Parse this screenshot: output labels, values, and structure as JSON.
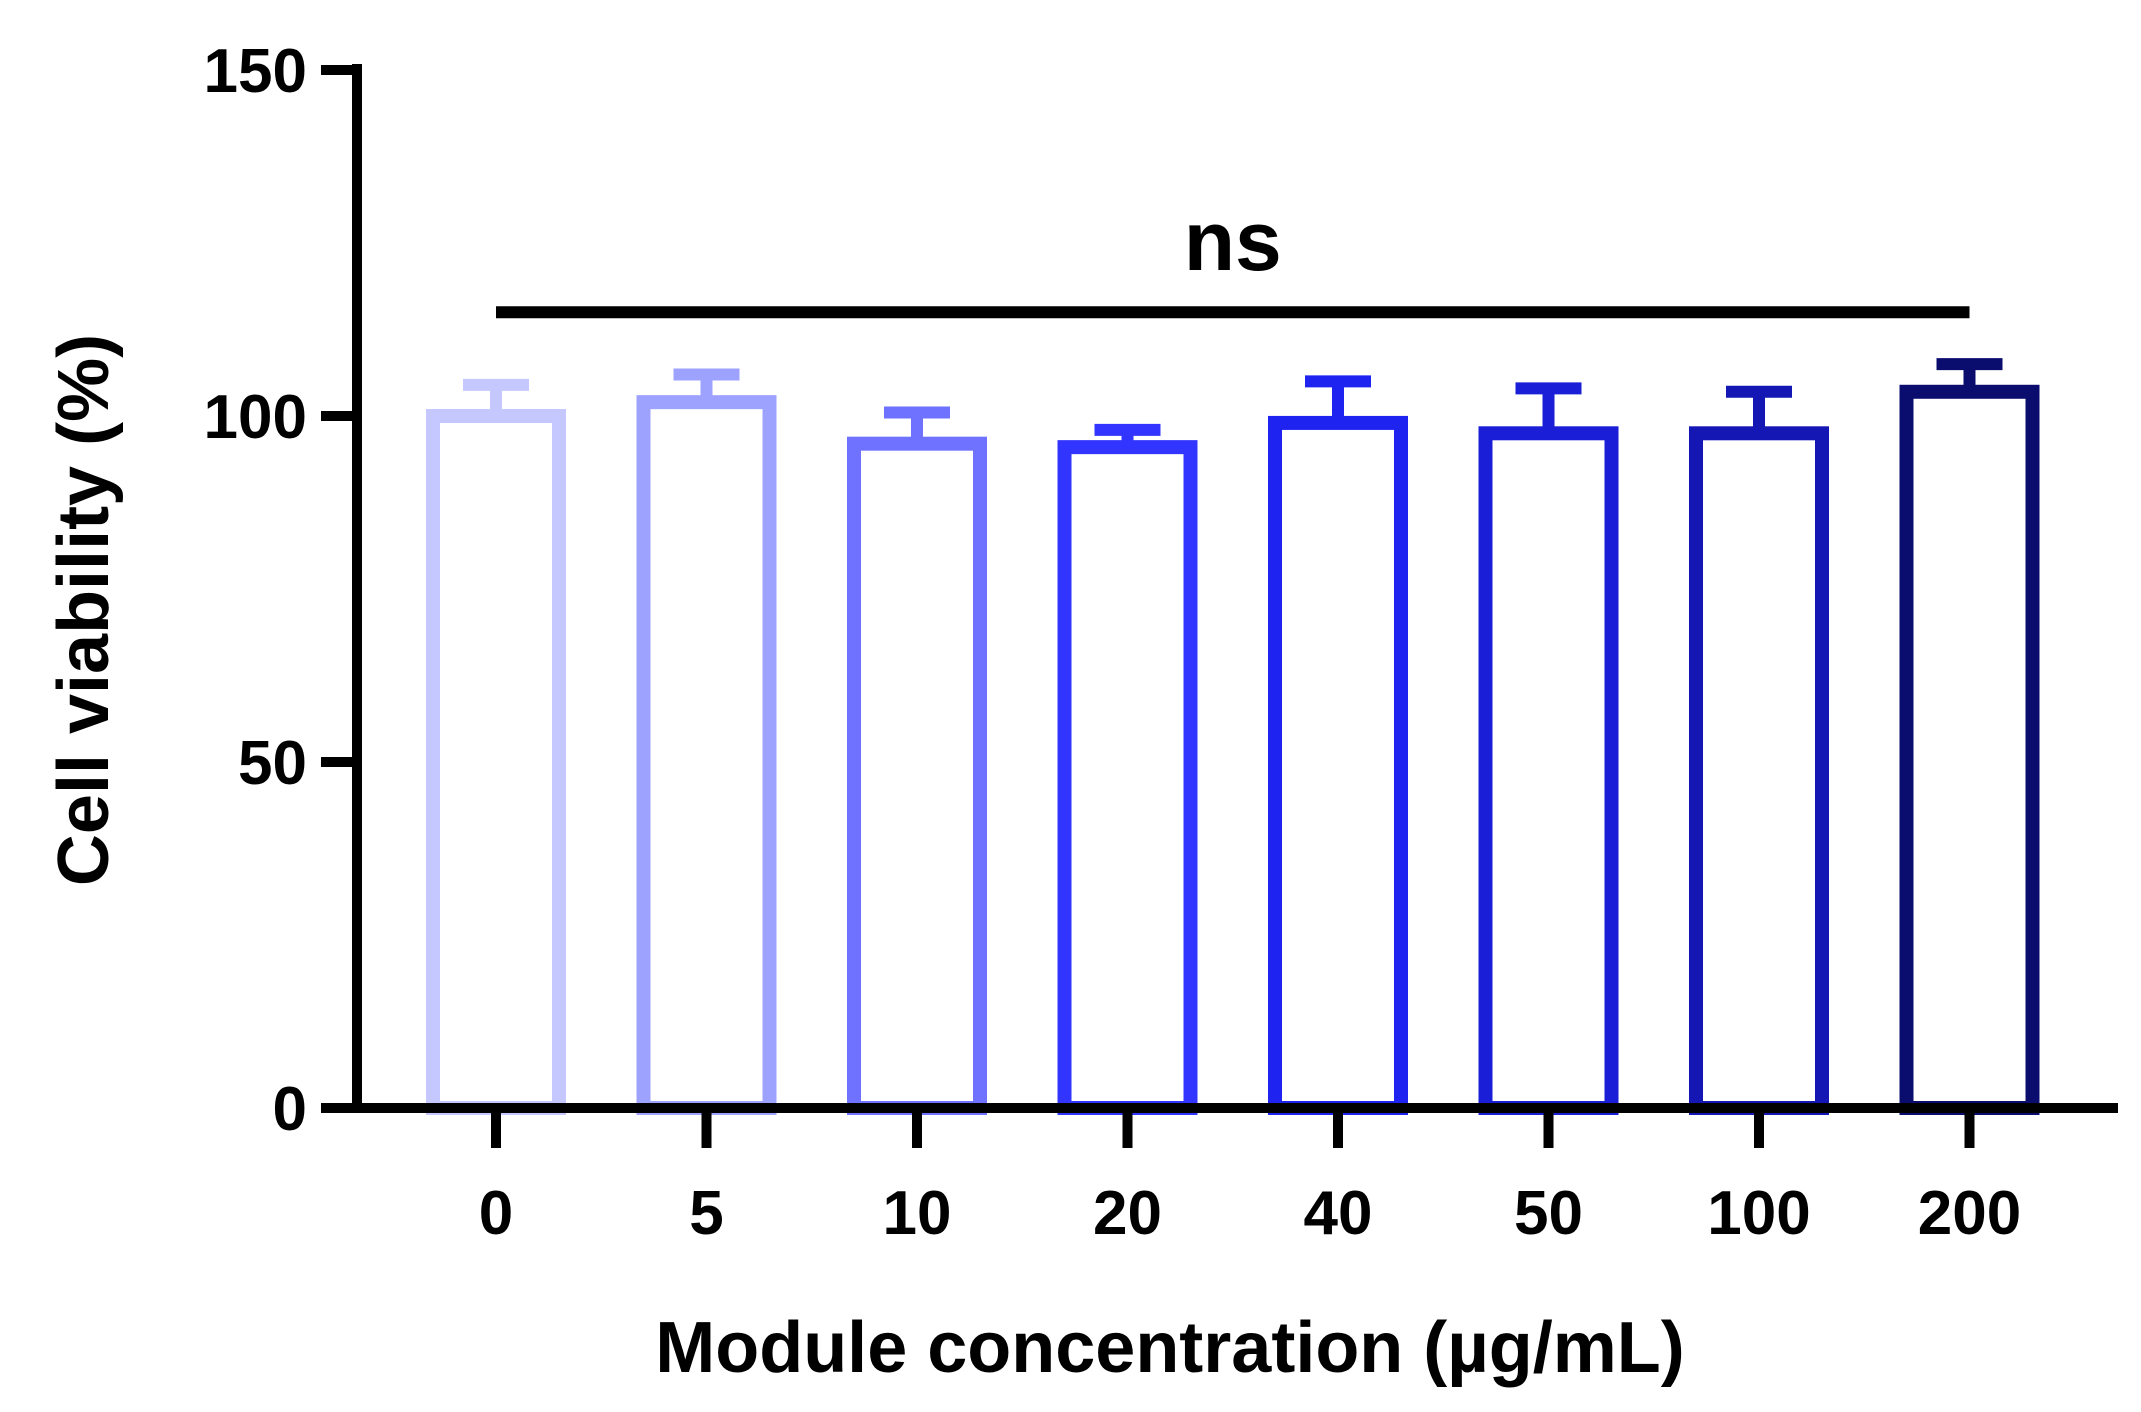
{
  "chart_data": {
    "type": "bar",
    "xlabel": "Module concentration (µg/mL)",
    "ylabel": "Cell viability (%)",
    "categories": [
      "0",
      "5",
      "10",
      "20",
      "40",
      "50",
      "100",
      "200"
    ],
    "values": [
      100,
      102,
      96,
      95.5,
      99,
      97.5,
      97.5,
      103.5
    ],
    "errors": [
      4.5,
      4,
      4.5,
      2.5,
      6,
      6.5,
      6,
      4
    ],
    "bar_colors": [
      "#c5c8ff",
      "#9ea2ff",
      "#6e72ff",
      "#3235ff",
      "#1f23f0",
      "#1a1ed6",
      "#1417b4",
      "#0b0d6e"
    ],
    "ylim": [
      0,
      150
    ],
    "yticks": [
      0,
      50,
      100,
      150
    ],
    "grid": false,
    "annotation": {
      "text": "ns",
      "y": 115,
      "from_category": "0",
      "to_category": "200"
    }
  }
}
